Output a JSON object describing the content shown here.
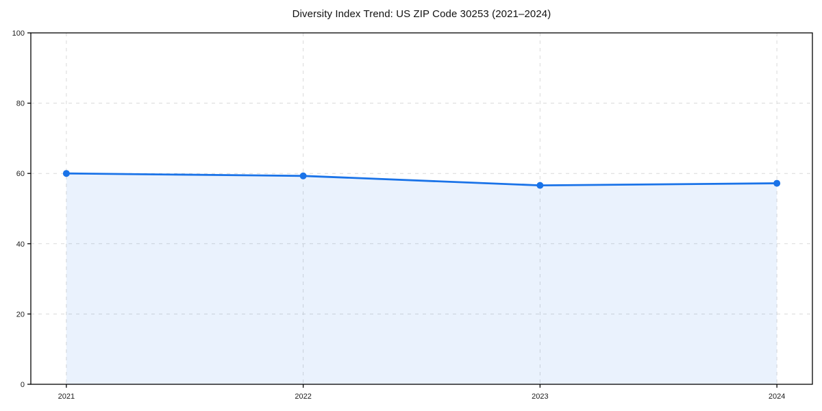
{
  "chart_data": {
    "type": "area",
    "title": "Diversity Index Trend: US ZIP Code 30253 (2021–2024)",
    "x": [
      2021,
      2022,
      2023,
      2024
    ],
    "categories": [
      "2021",
      "2022",
      "2023",
      "2024"
    ],
    "series": [
      {
        "name": "Diversity Index",
        "values": [
          60.0,
          59.3,
          56.6,
          57.2
        ]
      }
    ],
    "xlabel": "",
    "ylabel": "",
    "ylim": [
      0,
      100
    ],
    "yticks": [
      0,
      20,
      40,
      60,
      80,
      100
    ],
    "xtick_labels": [
      "2021",
      "2022",
      "2023",
      "2024"
    ],
    "grid": "dashed, both axes, light gray",
    "legend": "none",
    "marker": "circle",
    "colors": {
      "line": "#1a73e8",
      "marker": "#1a73e8",
      "fill": "rgba(26,115,232,0.09)",
      "grid": "#d9d9d9",
      "axis": "#000000",
      "tick_text": "#1a1a1a",
      "title_text": "#111111",
      "background": "#ffffff"
    }
  }
}
